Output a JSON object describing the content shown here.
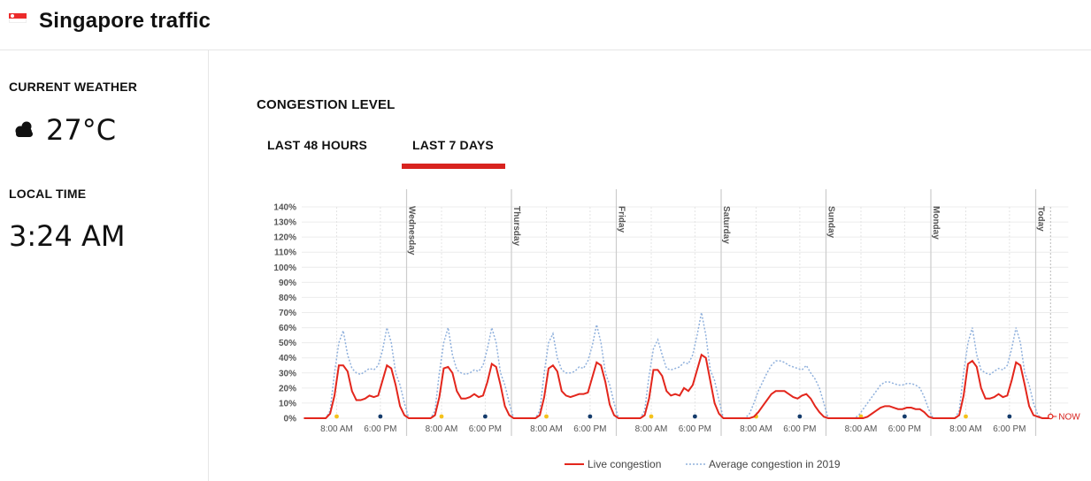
{
  "header": {
    "title": "Singapore traffic",
    "flag_icon": "singapore-flag-icon"
  },
  "sidebar": {
    "weather_label": "CURRENT WEATHER",
    "weather_icon": "cloud-icon",
    "temperature": "27°C",
    "time_label": "LOCAL TIME",
    "local_time": "3:24 AM"
  },
  "main": {
    "section_title": "CONGESTION LEVEL",
    "tabs": [
      {
        "label": "LAST 48 HOURS",
        "active": false
      },
      {
        "label": "LAST 7 DAYS",
        "active": true
      }
    ]
  },
  "colors": {
    "live": "#e3261c",
    "average": "#8fb0dc",
    "morning_dot": "#f4c21b",
    "evening_dot": "#143b6b",
    "accent": "#d8231f"
  },
  "chart_data": {
    "type": "line",
    "ylim": [
      0,
      140
    ],
    "y_ticks": [
      "0%",
      "10%",
      "20%",
      "30%",
      "40%",
      "50%",
      "60%",
      "70%",
      "80%",
      "90%",
      "100%",
      "110%",
      "120%",
      "130%",
      "140%"
    ],
    "hour_labels": [
      "8:00 AM",
      "6:00 PM"
    ],
    "days": [
      "Wednesday",
      "Thursday",
      "Friday",
      "Saturday",
      "Sunday",
      "Monday",
      "Today"
    ],
    "now_label": "NOW",
    "legend": {
      "live": "Live congestion",
      "average": "Average congestion in 2019"
    },
    "series": [
      {
        "name": "Live congestion",
        "days": [
          {
            "hours": [
              0,
              0,
              0,
              0,
              0,
              0,
              3,
              15,
              35,
              35,
              31,
              18,
              12,
              12,
              13,
              15,
              14,
              15,
              25,
              35,
              33,
              22,
              8,
              2
            ]
          },
          {
            "hours": [
              0,
              0,
              0,
              0,
              0,
              0,
              2,
              14,
              33,
              34,
              30,
              18,
              13,
              13,
              14,
              16,
              14,
              15,
              24,
              36,
              34,
              22,
              8,
              2
            ]
          },
          {
            "hours": [
              0,
              0,
              0,
              0,
              0,
              0,
              2,
              14,
              33,
              35,
              31,
              18,
              15,
              14,
              15,
              16,
              16,
              17,
              27,
              37,
              35,
              24,
              9,
              2
            ]
          },
          {
            "hours": [
              0,
              0,
              0,
              0,
              0,
              0,
              2,
              13,
              32,
              32,
              28,
              18,
              15,
              16,
              15,
              20,
              18,
              22,
              32,
              42,
              40,
              25,
              10,
              3
            ]
          },
          {
            "hours": [
              0,
              0,
              0,
              0,
              0,
              0,
              0,
              1,
              4,
              8,
              12,
              16,
              18,
              18,
              18,
              16,
              14,
              13,
              15,
              16,
              13,
              8,
              4,
              1
            ]
          },
          {
            "hours": [
              0,
              0,
              0,
              0,
              0,
              0,
              0,
              0,
              0,
              1,
              3,
              5,
              7,
              8,
              8,
              7,
              6,
              6,
              7,
              7,
              6,
              6,
              4,
              1
            ]
          },
          {
            "hours": [
              0,
              0,
              0,
              0,
              0,
              0,
              2,
              15,
              36,
              38,
              34,
              20,
              13,
              13,
              14,
              16,
              14,
              15,
              25,
              37,
              35,
              22,
              8,
              2
            ]
          },
          {
            "hours": [
              1,
              0,
              0,
              0
            ]
          }
        ]
      },
      {
        "name": "Average congestion in 2019",
        "days": [
          {
            "hours": [
              0,
              0,
              0,
              0,
              0,
              0,
              5,
              30,
              50,
              58,
              42,
              33,
              30,
              29,
              31,
              33,
              32,
              35,
              45,
              60,
              50,
              30,
              22,
              10
            ]
          },
          {
            "hours": [
              0,
              0,
              0,
              0,
              0,
              0,
              5,
              30,
              50,
              60,
              42,
              32,
              30,
              29,
              30,
              32,
              31,
              35,
              46,
              60,
              50,
              30,
              22,
              10
            ]
          },
          {
            "hours": [
              0,
              0,
              0,
              0,
              0,
              0,
              5,
              30,
              50,
              56,
              40,
              32,
              30,
              30,
              31,
              34,
              33,
              38,
              48,
              62,
              50,
              30,
              22,
              10
            ]
          },
          {
            "hours": [
              0,
              0,
              0,
              0,
              0,
              0,
              5,
              28,
              46,
              52,
              42,
              33,
              32,
              33,
              34,
              37,
              36,
              42,
              55,
              70,
              55,
              32,
              25,
              12
            ]
          },
          {
            "hours": [
              0,
              0,
              0,
              0,
              0,
              0,
              3,
              10,
              18,
              24,
              30,
              35,
              38,
              38,
              37,
              35,
              34,
              33,
              32,
              35,
              30,
              26,
              20,
              10
            ]
          },
          {
            "hours": [
              0,
              0,
              0,
              0,
              0,
              0,
              0,
              2,
              6,
              10,
              14,
              18,
              22,
              24,
              24,
              23,
              22,
              22,
              23,
              23,
              22,
              20,
              14,
              6
            ]
          },
          {
            "hours": [
              0,
              0,
              0,
              0,
              0,
              0,
              5,
              30,
              50,
              60,
              42,
              32,
              30,
              29,
              31,
              33,
              32,
              35,
              46,
              60,
              50,
              30,
              22,
              10
            ]
          },
          {
            "hours": [
              2,
              0,
              0,
              0
            ]
          }
        ]
      }
    ]
  }
}
